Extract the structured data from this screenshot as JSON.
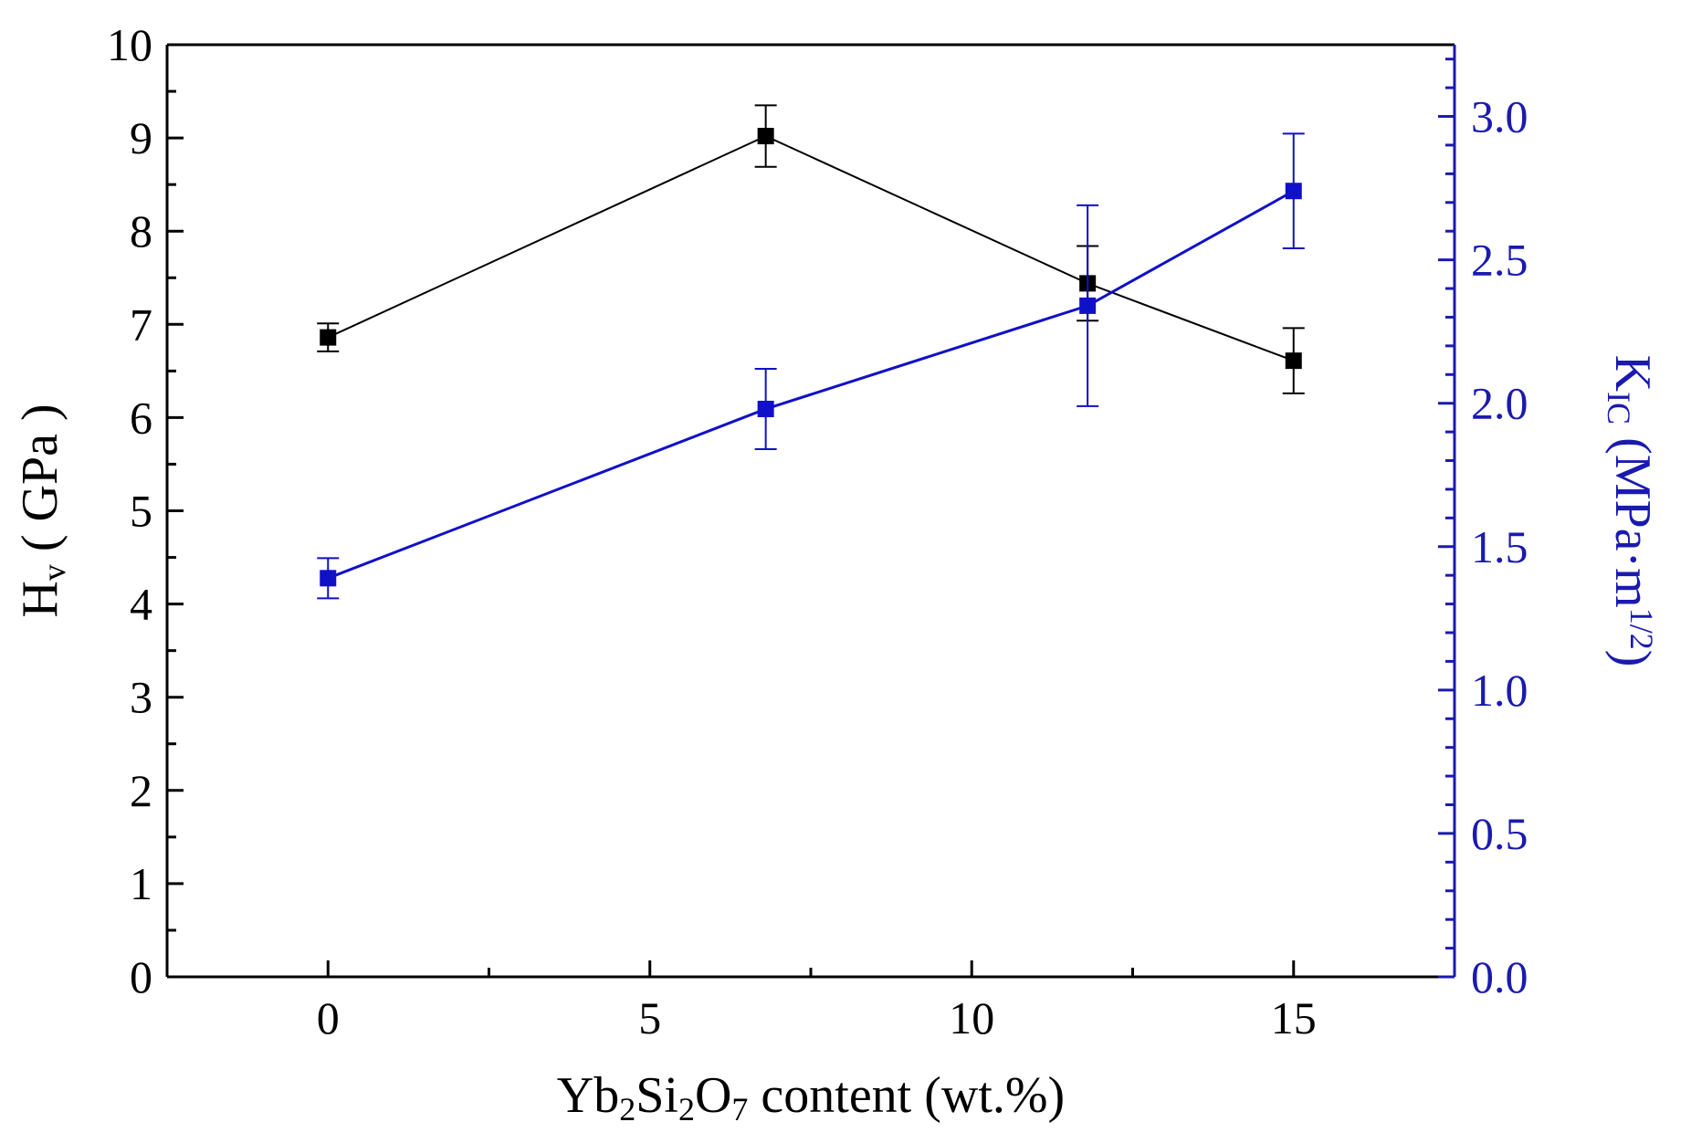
{
  "chart_data": {
    "type": "line",
    "title": "",
    "x": [
      0,
      6.8,
      11.8,
      15
    ],
    "xlim": [
      -2.5,
      17.5
    ],
    "xticks": [
      0,
      5,
      10,
      15
    ],
    "xlabel": {
      "parts": [
        {
          "text": "Yb",
          "sub": false
        },
        {
          "text": "2",
          "sub": true
        },
        {
          "text": "Si",
          "sub": false
        },
        {
          "text": "2",
          "sub": true
        },
        {
          "text": "O",
          "sub": false
        },
        {
          "text": "7",
          "sub": true
        },
        {
          "text": " content (wt.%)",
          "sub": false
        }
      ]
    },
    "y_left": {
      "lim": [
        0,
        10
      ],
      "ticks": [
        0,
        1,
        2,
        3,
        4,
        5,
        6,
        7,
        8,
        9,
        10
      ],
      "label": {
        "parts": [
          {
            "text": "H",
            "sub": false
          },
          {
            "text": "v",
            "sub": true
          },
          {
            "text": " ( GPa )",
            "sub": false
          }
        ]
      },
      "color": "#000000"
    },
    "y_right": {
      "lim": [
        0,
        3.25
      ],
      "ticks": [
        0.0,
        0.5,
        1.0,
        1.5,
        2.0,
        2.5,
        3.0
      ],
      "tick_labels": [
        "0.0",
        "0.5",
        "1.0",
        "1.5",
        "2.0",
        "2.5",
        "3.0"
      ],
      "label": {
        "parts": [
          {
            "text": "K",
            "sub": false
          },
          {
            "text": "IC",
            "sub": true
          },
          {
            "text": " (MPa·m",
            "sub": false
          },
          {
            "text": "1/2",
            "sub": "sup"
          },
          {
            "text": ")",
            "sub": false
          }
        ]
      },
      "color": "#1a1ab0"
    },
    "series": [
      {
        "name": "Hv",
        "axis": "left",
        "color": "#000000",
        "x": [
          0,
          6.8,
          11.8,
          15
        ],
        "values": [
          6.86,
          9.02,
          7.44,
          6.61
        ],
        "errors": [
          0.15,
          0.33,
          0.4,
          0.35
        ]
      },
      {
        "name": "KIC",
        "axis": "right",
        "color": "#1010c8",
        "x": [
          0,
          6.8,
          11.8,
          15
        ],
        "values": [
          1.39,
          1.98,
          2.34,
          2.74
        ],
        "errors": [
          0.07,
          0.14,
          0.35,
          0.2
        ]
      }
    ]
  }
}
